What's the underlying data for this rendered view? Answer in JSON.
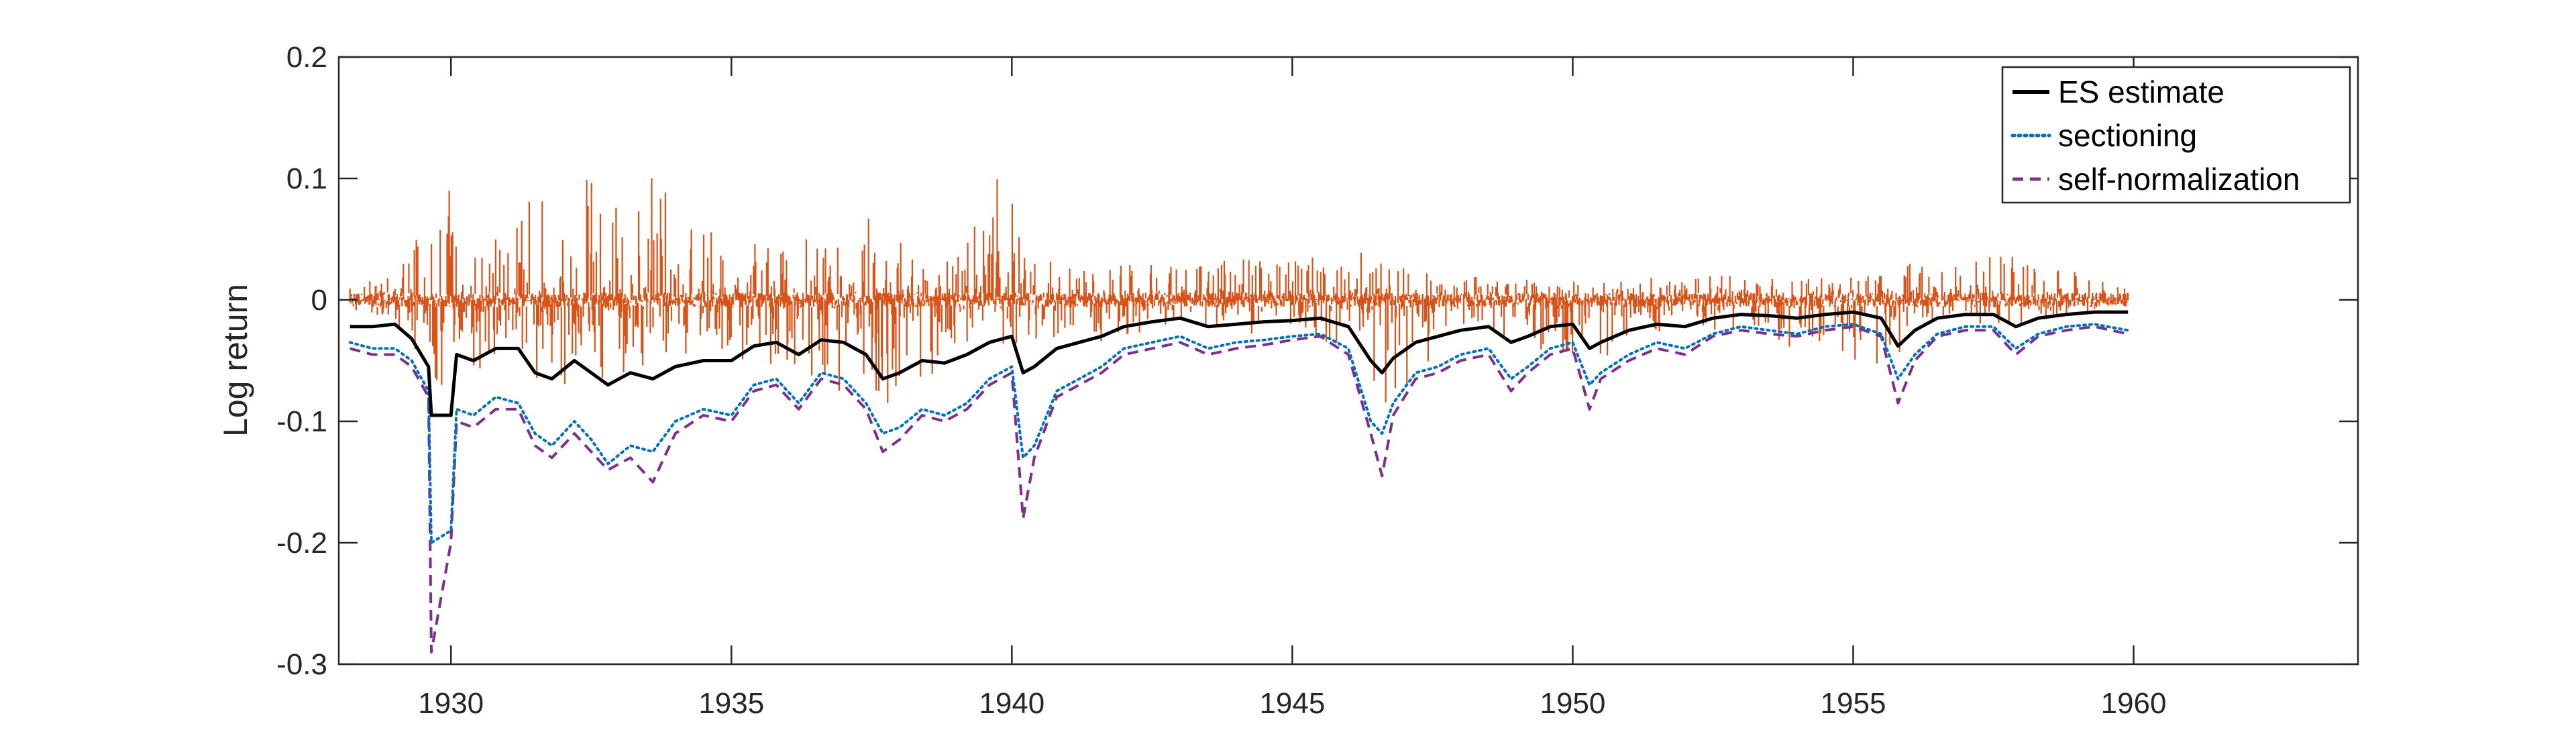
{
  "chart_data": {
    "type": "line",
    "title": "",
    "xlabel": "",
    "ylabel": "Log return",
    "xlim": [
      1928.0,
      1964.0
    ],
    "ylim": [
      -0.3,
      0.2
    ],
    "x_ticks": [
      1930,
      1935,
      1940,
      1945,
      1950,
      1955,
      1960
    ],
    "x_tick_labels": [
      "1930",
      "1935",
      "1940",
      "1945",
      "1950",
      "1955",
      "1960"
    ],
    "y_ticks": [
      0.2,
      0.1,
      0,
      -0.1,
      -0.2,
      -0.3
    ],
    "y_tick_labels": [
      "0.2",
      "0.1",
      "0",
      "-0.1",
      "-0.2",
      "-0.3"
    ],
    "grid": false,
    "legend_position": "top-right",
    "legend": [
      "ES estimate",
      "sectioning",
      "self-normalization"
    ],
    "colors": {
      "returns": "#D95319",
      "es": "#000000",
      "sectioning": "#0072BD",
      "self_normalization": "#7E2F8E"
    },
    "series": [
      {
        "name": "ES estimate",
        "style": "solid",
        "x": [
          1928.2,
          1928.6,
          1929.0,
          1929.3,
          1929.6,
          1929.65,
          1930.0,
          1930.1,
          1930.4,
          1930.8,
          1931.2,
          1931.5,
          1931.8,
          1932.2,
          1932.5,
          1932.8,
          1933.2,
          1933.6,
          1934.0,
          1934.5,
          1935.0,
          1935.4,
          1935.8,
          1936.2,
          1936.6,
          1937.0,
          1937.4,
          1937.7,
          1938.0,
          1938.4,
          1938.8,
          1939.2,
          1939.6,
          1940.0,
          1940.2,
          1940.4,
          1940.8,
          1941.2,
          1941.6,
          1942.0,
          1942.5,
          1943.0,
          1943.5,
          1944.0,
          1944.5,
          1945.0,
          1945.5,
          1946.0,
          1946.4,
          1946.6,
          1946.8,
          1947.2,
          1947.6,
          1948.0,
          1948.5,
          1948.9,
          1949.2,
          1949.6,
          1950.0,
          1950.3,
          1950.5,
          1951.0,
          1951.5,
          1952.0,
          1952.5,
          1953.0,
          1953.5,
          1954.0,
          1954.5,
          1955.0,
          1955.5,
          1955.8,
          1956.1,
          1956.5,
          1957.0,
          1957.5,
          1957.9,
          1958.3,
          1958.8,
          1959.3,
          1959.9
        ],
        "y": [
          -0.022,
          -0.022,
          -0.02,
          -0.032,
          -0.055,
          -0.095,
          -0.095,
          -0.045,
          -0.05,
          -0.04,
          -0.04,
          -0.06,
          -0.065,
          -0.05,
          -0.06,
          -0.07,
          -0.06,
          -0.065,
          -0.055,
          -0.05,
          -0.05,
          -0.038,
          -0.035,
          -0.045,
          -0.033,
          -0.035,
          -0.045,
          -0.065,
          -0.06,
          -0.05,
          -0.052,
          -0.045,
          -0.035,
          -0.03,
          -0.06,
          -0.055,
          -0.04,
          -0.035,
          -0.03,
          -0.022,
          -0.018,
          -0.015,
          -0.022,
          -0.02,
          -0.018,
          -0.017,
          -0.015,
          -0.022,
          -0.05,
          -0.06,
          -0.048,
          -0.035,
          -0.03,
          -0.025,
          -0.022,
          -0.035,
          -0.03,
          -0.022,
          -0.02,
          -0.04,
          -0.035,
          -0.025,
          -0.02,
          -0.022,
          -0.015,
          -0.012,
          -0.013,
          -0.015,
          -0.012,
          -0.01,
          -0.015,
          -0.038,
          -0.025,
          -0.015,
          -0.012,
          -0.012,
          -0.022,
          -0.015,
          -0.012,
          -0.01,
          -0.01
        ]
      },
      {
        "name": "sectioning",
        "style": "dotted",
        "x": [
          1928.2,
          1928.6,
          1929.0,
          1929.3,
          1929.6,
          1929.65,
          1930.0,
          1930.1,
          1930.4,
          1930.8,
          1931.2,
          1931.5,
          1931.8,
          1932.2,
          1932.5,
          1932.8,
          1933.2,
          1933.6,
          1934.0,
          1934.5,
          1935.0,
          1935.4,
          1935.8,
          1936.2,
          1936.6,
          1937.0,
          1937.4,
          1937.7,
          1938.0,
          1938.4,
          1938.8,
          1939.2,
          1939.6,
          1940.0,
          1940.2,
          1940.4,
          1940.8,
          1941.2,
          1941.6,
          1942.0,
          1942.5,
          1943.0,
          1943.5,
          1944.0,
          1944.5,
          1945.0,
          1945.5,
          1946.0,
          1946.4,
          1946.6,
          1946.8,
          1947.2,
          1947.6,
          1948.0,
          1948.5,
          1948.9,
          1949.2,
          1949.6,
          1950.0,
          1950.3,
          1950.5,
          1951.0,
          1951.5,
          1952.0,
          1952.5,
          1953.0,
          1953.5,
          1954.0,
          1954.5,
          1955.0,
          1955.5,
          1955.8,
          1956.1,
          1956.5,
          1957.0,
          1957.5,
          1957.9,
          1958.3,
          1958.8,
          1959.3,
          1959.9
        ],
        "y": [
          -0.035,
          -0.04,
          -0.04,
          -0.05,
          -0.075,
          -0.2,
          -0.19,
          -0.09,
          -0.095,
          -0.08,
          -0.085,
          -0.11,
          -0.12,
          -0.1,
          -0.115,
          -0.135,
          -0.12,
          -0.125,
          -0.1,
          -0.09,
          -0.095,
          -0.07,
          -0.065,
          -0.085,
          -0.06,
          -0.065,
          -0.085,
          -0.11,
          -0.105,
          -0.09,
          -0.095,
          -0.085,
          -0.065,
          -0.055,
          -0.13,
          -0.12,
          -0.075,
          -0.065,
          -0.055,
          -0.04,
          -0.035,
          -0.03,
          -0.04,
          -0.035,
          -0.033,
          -0.03,
          -0.028,
          -0.04,
          -0.1,
          -0.11,
          -0.085,
          -0.06,
          -0.055,
          -0.045,
          -0.04,
          -0.065,
          -0.055,
          -0.04,
          -0.035,
          -0.07,
          -0.06,
          -0.045,
          -0.035,
          -0.04,
          -0.028,
          -0.022,
          -0.025,
          -0.028,
          -0.022,
          -0.02,
          -0.028,
          -0.065,
          -0.045,
          -0.028,
          -0.022,
          -0.022,
          -0.04,
          -0.028,
          -0.022,
          -0.02,
          -0.025
        ]
      },
      {
        "name": "self-normalization",
        "style": "dashed",
        "x": [
          1928.2,
          1928.6,
          1929.0,
          1929.3,
          1929.6,
          1929.65,
          1930.0,
          1930.1,
          1930.4,
          1930.8,
          1931.2,
          1931.5,
          1931.8,
          1932.2,
          1932.5,
          1932.8,
          1933.2,
          1933.6,
          1934.0,
          1934.5,
          1935.0,
          1935.4,
          1935.8,
          1936.2,
          1936.6,
          1937.0,
          1937.4,
          1937.7,
          1938.0,
          1938.4,
          1938.8,
          1939.2,
          1939.6,
          1940.0,
          1940.2,
          1940.4,
          1940.8,
          1941.2,
          1941.6,
          1942.0,
          1942.5,
          1943.0,
          1943.5,
          1944.0,
          1944.5,
          1945.0,
          1945.5,
          1946.0,
          1946.4,
          1946.6,
          1946.8,
          1947.2,
          1947.6,
          1948.0,
          1948.5,
          1948.9,
          1949.2,
          1949.6,
          1950.0,
          1950.3,
          1950.5,
          1951.0,
          1951.5,
          1952.0,
          1952.5,
          1953.0,
          1953.5,
          1954.0,
          1954.5,
          1955.0,
          1955.5,
          1955.8,
          1956.1,
          1956.5,
          1957.0,
          1957.5,
          1957.9,
          1958.3,
          1958.8,
          1959.3,
          1959.9
        ],
        "y": [
          -0.04,
          -0.045,
          -0.045,
          -0.055,
          -0.08,
          -0.29,
          -0.2,
          -0.1,
          -0.105,
          -0.09,
          -0.09,
          -0.12,
          -0.13,
          -0.11,
          -0.125,
          -0.14,
          -0.13,
          -0.15,
          -0.11,
          -0.095,
          -0.1,
          -0.075,
          -0.07,
          -0.09,
          -0.065,
          -0.07,
          -0.09,
          -0.125,
          -0.115,
          -0.095,
          -0.1,
          -0.09,
          -0.07,
          -0.06,
          -0.18,
          -0.13,
          -0.08,
          -0.07,
          -0.06,
          -0.045,
          -0.04,
          -0.035,
          -0.045,
          -0.04,
          -0.037,
          -0.033,
          -0.03,
          -0.045,
          -0.11,
          -0.145,
          -0.095,
          -0.065,
          -0.06,
          -0.05,
          -0.045,
          -0.075,
          -0.06,
          -0.045,
          -0.04,
          -0.09,
          -0.065,
          -0.05,
          -0.04,
          -0.045,
          -0.03,
          -0.025,
          -0.028,
          -0.03,
          -0.025,
          -0.022,
          -0.03,
          -0.085,
          -0.05,
          -0.03,
          -0.025,
          -0.025,
          -0.045,
          -0.03,
          -0.025,
          -0.022,
          -0.028
        ]
      },
      {
        "name": "",
        "style": "returns",
        "x": [
          1928.2,
          1929.0,
          1929.8,
          1930.2,
          1931.0,
          1931.5,
          1932.0,
          1932.5,
          1933.0,
          1933.4,
          1934.0,
          1935.0,
          1936.0,
          1937.0,
          1937.8,
          1939.0,
          1939.8,
          1941.0,
          1943.0,
          1946.3,
          1946.6,
          1948.0,
          1950.3,
          1952.0,
          1955.7,
          1956.0,
          1957.9,
          1959.9
        ],
        "upper": [
          0.012,
          0.02,
          0.115,
          0.06,
          0.05,
          0.1,
          0.07,
          0.11,
          0.08,
          0.152,
          0.07,
          0.06,
          0.05,
          0.09,
          0.05,
          0.04,
          0.108,
          0.03,
          0.03,
          0.04,
          0.03,
          0.02,
          0.015,
          0.02,
          0.02,
          0.03,
          0.04,
          0.01
        ],
        "lower": [
          -0.01,
          -0.02,
          -0.08,
          -0.06,
          -0.06,
          -0.07,
          -0.08,
          -0.07,
          -0.06,
          -0.07,
          -0.05,
          -0.05,
          -0.06,
          -0.08,
          -0.1,
          -0.04,
          -0.04,
          -0.04,
          -0.02,
          -0.04,
          -0.11,
          -0.02,
          -0.055,
          -0.02,
          -0.06,
          -0.02,
          -0.02,
          -0.005
        ]
      }
    ]
  }
}
